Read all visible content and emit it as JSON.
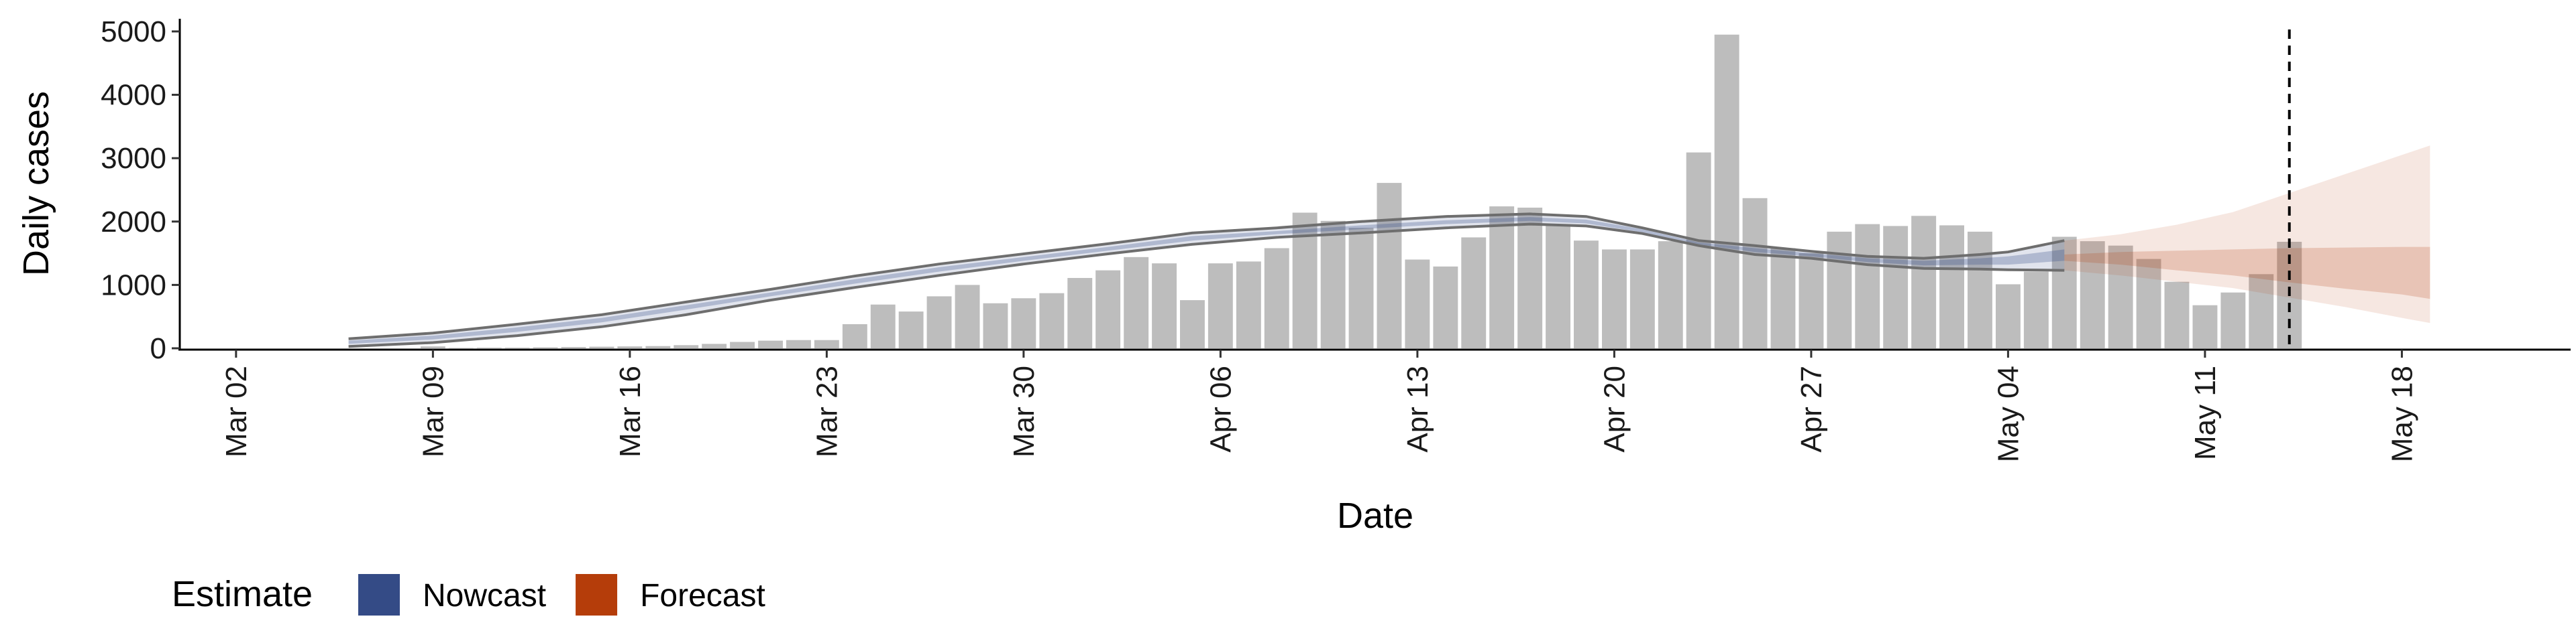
{
  "chart_data": {
    "type": "bar",
    "xlabel": "Date",
    "ylabel": "Daily cases",
    "ylim": [
      0,
      5200
    ],
    "xlim": [
      "2020-02-29",
      "2020-05-24"
    ],
    "yticks": [
      0,
      1000,
      2000,
      3000,
      4000,
      5000
    ],
    "xticks": [
      {
        "date": "2020-03-02",
        "label": "Mar 02"
      },
      {
        "date": "2020-03-09",
        "label": "Mar 09"
      },
      {
        "date": "2020-03-16",
        "label": "Mar 16"
      },
      {
        "date": "2020-03-23",
        "label": "Mar 23"
      },
      {
        "date": "2020-03-30",
        "label": "Mar 30"
      },
      {
        "date": "2020-04-06",
        "label": "Apr 06"
      },
      {
        "date": "2020-04-13",
        "label": "Apr 13"
      },
      {
        "date": "2020-04-20",
        "label": "Apr 20"
      },
      {
        "date": "2020-04-27",
        "label": "Apr 27"
      },
      {
        "date": "2020-05-04",
        "label": "May 04"
      },
      {
        "date": "2020-05-11",
        "label": "May 11"
      },
      {
        "date": "2020-05-18",
        "label": "May 18"
      }
    ],
    "grid": false,
    "legend": {
      "title": "Estimate",
      "position": "bottom-left",
      "entries": [
        {
          "label": "Nowcast",
          "color": "#344b86"
        },
        {
          "label": "Forecast",
          "color": "#b53d0a"
        }
      ]
    },
    "bar_color": "#bdbdbd",
    "bars": {
      "dates": [
        "2020-03-09",
        "2020-03-10",
        "2020-03-11",
        "2020-03-12",
        "2020-03-13",
        "2020-03-14",
        "2020-03-15",
        "2020-03-16",
        "2020-03-17",
        "2020-03-18",
        "2020-03-19",
        "2020-03-20",
        "2020-03-21",
        "2020-03-22",
        "2020-03-23",
        "2020-03-24",
        "2020-03-25",
        "2020-03-26",
        "2020-03-27",
        "2020-03-28",
        "2020-03-29",
        "2020-03-30",
        "2020-03-31",
        "2020-04-01",
        "2020-04-02",
        "2020-04-03",
        "2020-04-04",
        "2020-04-05",
        "2020-04-06",
        "2020-04-07",
        "2020-04-08",
        "2020-04-09",
        "2020-04-10",
        "2020-04-11",
        "2020-04-12",
        "2020-04-13",
        "2020-04-14",
        "2020-04-15",
        "2020-04-16",
        "2020-04-17",
        "2020-04-18",
        "2020-04-19",
        "2020-04-20",
        "2020-04-21",
        "2020-04-22",
        "2020-04-23",
        "2020-04-24",
        "2020-04-25",
        "2020-04-26",
        "2020-04-27",
        "2020-04-28",
        "2020-04-29",
        "2020-04-30",
        "2020-05-01",
        "2020-05-02",
        "2020-05-03",
        "2020-05-04",
        "2020-05-05",
        "2020-05-06",
        "2020-05-07",
        "2020-05-08",
        "2020-05-09",
        "2020-05-10",
        "2020-05-11",
        "2020-05-12",
        "2020-05-13",
        "2020-05-14"
      ],
      "values": [
        30,
        5,
        10,
        10,
        15,
        20,
        25,
        30,
        35,
        50,
        70,
        100,
        120,
        130,
        130,
        380,
        690,
        580,
        820,
        1000,
        710,
        790,
        870,
        1110,
        1230,
        1440,
        1340,
        760,
        1340,
        1370,
        1580,
        2140,
        2010,
        1900,
        2610,
        1400,
        1290,
        1750,
        2240,
        2220,
        1940,
        1700,
        1560,
        1560,
        1690,
        3090,
        4950,
        2370,
        1580,
        1500,
        1840,
        1960,
        1930,
        2090,
        1940,
        1840,
        1010,
        1210,
        1760,
        1690,
        1620,
        1410,
        1050,
        680,
        880,
        1170,
        1680
      ]
    },
    "series": [
      {
        "name": "Nowcast",
        "color": "#344b86",
        "dates": [
          "2020-03-06",
          "2020-03-09",
          "2020-03-12",
          "2020-03-15",
          "2020-03-18",
          "2020-03-21",
          "2020-03-24",
          "2020-03-27",
          "2020-03-30",
          "2020-04-02",
          "2020-04-05",
          "2020-04-08",
          "2020-04-11",
          "2020-04-14",
          "2020-04-17",
          "2020-04-19",
          "2020-04-21",
          "2020-04-23",
          "2020-04-25",
          "2020-04-27",
          "2020-04-29",
          "2020-05-01",
          "2020-05-03",
          "2020-05-04",
          "2020-05-06"
        ],
        "upper": [
          150,
          240,
          380,
          530,
          730,
          930,
          1140,
          1330,
          1490,
          1650,
          1820,
          1900,
          2000,
          2080,
          2120,
          2080,
          1900,
          1700,
          1620,
          1530,
          1450,
          1420,
          1480,
          1520,
          1700
        ],
        "lower": [
          30,
          90,
          200,
          340,
          530,
          760,
          960,
          1150,
          1330,
          1490,
          1640,
          1750,
          1820,
          1900,
          1960,
          1930,
          1810,
          1620,
          1480,
          1420,
          1320,
          1260,
          1250,
          1240,
          1230
        ],
        "inner_upper": [
          120,
          200,
          330,
          480,
          680,
          880,
          1090,
          1280,
          1440,
          1600,
          1770,
          1850,
          1940,
          2020,
          2070,
          2030,
          1880,
          1670,
          1580,
          1500,
          1420,
          1380,
          1420,
          1450,
          1560
        ],
        "inner_lower": [
          70,
          140,
          260,
          410,
          610,
          820,
          1020,
          1210,
          1380,
          1540,
          1700,
          1800,
          1880,
          1960,
          2010,
          1970,
          1830,
          1640,
          1520,
          1450,
          1360,
          1310,
          1320,
          1320,
          1380
        ]
      },
      {
        "name": "Forecast",
        "color": "#b53d0a",
        "dates": [
          "2020-05-06",
          "2020-05-08",
          "2020-05-10",
          "2020-05-12",
          "2020-05-14",
          "2020-05-16",
          "2020-05-18",
          "2020-05-19"
        ],
        "upper": [
          1700,
          1800,
          1950,
          2150,
          2450,
          2750,
          3050,
          3200
        ],
        "lower": [
          1230,
          1150,
          1050,
          950,
          800,
          650,
          480,
          400
        ],
        "inner_upper": [
          1480,
          1520,
          1540,
          1560,
          1580,
          1590,
          1600,
          1600
        ],
        "inner_lower": [
          1380,
          1320,
          1230,
          1150,
          1040,
          940,
          850,
          780
        ]
      }
    ],
    "vline": {
      "date": "2020-05-14",
      "style": "dashed",
      "color": "#000000"
    }
  }
}
